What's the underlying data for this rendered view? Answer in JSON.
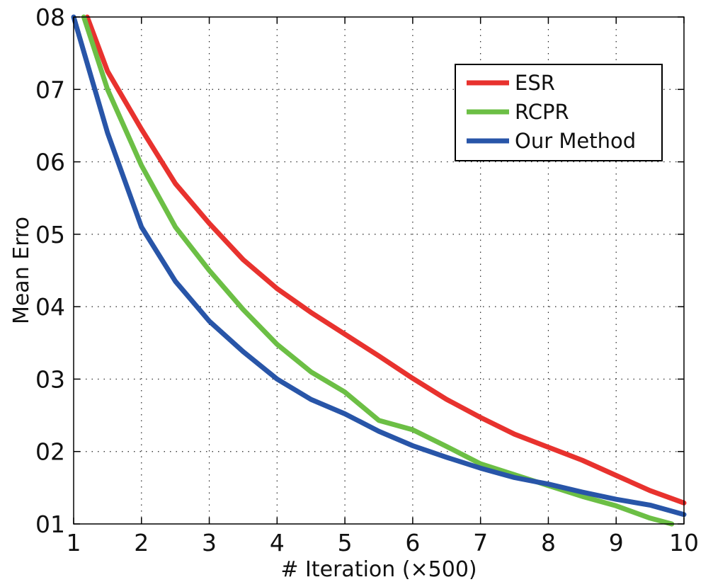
{
  "chart_data": {
    "type": "line",
    "xlabel": "# Iteration (×500)",
    "ylabel": "Mean Erro",
    "xlim": [
      1,
      10
    ],
    "ylim": [
      0.1,
      0.8
    ],
    "xticks": [
      1,
      2,
      3,
      4,
      5,
      6,
      7,
      8,
      9,
      10
    ],
    "xtick_labels": [
      "1",
      "2",
      "3",
      "4",
      "5",
      "6",
      "7",
      "8",
      "9",
      "10"
    ],
    "yticks": [
      0.1,
      0.2,
      0.3,
      0.4,
      0.5,
      0.6,
      0.7,
      0.8
    ],
    "ytick_labels": [
      "01",
      "02",
      "03",
      "04",
      "05",
      "06",
      "07",
      "08"
    ],
    "grid": true,
    "legend_position": "top-right",
    "series": [
      {
        "name": "ESR",
        "color": "#e8322e",
        "x": [
          1.2,
          1.5,
          2,
          2.5,
          3,
          3.5,
          4,
          4.5,
          5,
          5.5,
          6,
          6.5,
          7,
          7.5,
          8,
          8.5,
          9,
          9.5,
          10
        ],
        "y": [
          0.8,
          0.725,
          0.645,
          0.57,
          0.515,
          0.465,
          0.425,
          0.392,
          0.362,
          0.332,
          0.301,
          0.272,
          0.247,
          0.224,
          0.206,
          0.188,
          0.167,
          0.146,
          0.129
        ]
      },
      {
        "name": "RCPR",
        "color": "#6cbf45",
        "x": [
          1.15,
          1.5,
          2,
          2.5,
          3,
          3.5,
          4,
          4.5,
          5,
          5.5,
          6,
          6.5,
          7,
          7.5,
          8,
          8.5,
          9,
          9.5,
          9.82
        ],
        "y": [
          0.8,
          0.7,
          0.595,
          0.51,
          0.45,
          0.396,
          0.348,
          0.31,
          0.282,
          0.243,
          0.23,
          0.207,
          0.183,
          0.168,
          0.153,
          0.138,
          0.125,
          0.108,
          0.1
        ]
      },
      {
        "name": "Our Method",
        "color": "#2855a8",
        "x": [
          1,
          1.5,
          2,
          2.5,
          3,
          3.5,
          4,
          4.5,
          5,
          5.5,
          6,
          6.5,
          7,
          7.5,
          8,
          8.5,
          9,
          9.5,
          10
        ],
        "y": [
          0.8,
          0.64,
          0.51,
          0.435,
          0.38,
          0.338,
          0.3,
          0.272,
          0.252,
          0.228,
          0.208,
          0.192,
          0.177,
          0.164,
          0.155,
          0.144,
          0.134,
          0.126,
          0.113
        ]
      }
    ]
  }
}
